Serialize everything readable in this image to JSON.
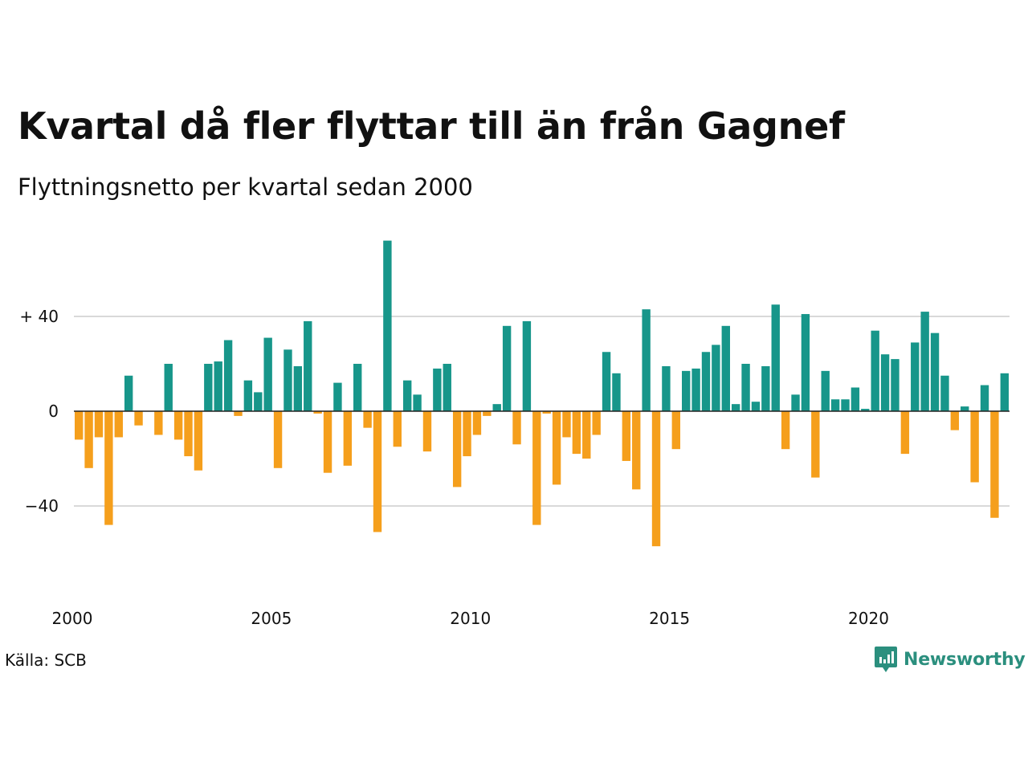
{
  "title": "Kvartal då fler flyttar till än från Gagnef",
  "subtitle": "Flyttningsnetto per kvartal sedan 2000",
  "source": "Källa: SCB",
  "brand": {
    "name": "Newsworthy",
    "icon": "bar-chart-badge-icon"
  },
  "colors": {
    "positive": "#17968a",
    "negative": "#f59f1c",
    "grid": "#d9d9d9",
    "zero": "#222222",
    "brand": "#2b8f7e"
  },
  "chart_data": {
    "type": "bar",
    "xlabel": "",
    "ylabel": "",
    "ylim": [
      -70,
      75
    ],
    "grid": true,
    "y_ticks": [
      40,
      0,
      -40
    ],
    "y_tick_labels": [
      "+ 40",
      "0",
      "−40"
    ],
    "x_ticks": [
      "2000",
      "2005",
      "2010",
      "2015",
      "2020"
    ],
    "first_quarter": "2000 Q1",
    "values": [
      -12,
      -24,
      -11,
      -48,
      -11,
      15,
      -6,
      0,
      -10,
      20,
      -12,
      -19,
      -25,
      20,
      21,
      30,
      -2,
      13,
      8,
      31,
      -24,
      26,
      19,
      38,
      -1,
      -26,
      12,
      -23,
      20,
      -7,
      -51,
      72,
      -15,
      13,
      7,
      -17,
      18,
      20,
      -32,
      -19,
      -10,
      -2,
      3,
      36,
      -14,
      38,
      -48,
      -1,
      -31,
      -11,
      -18,
      -20,
      -10,
      25,
      16,
      -21,
      -33,
      43,
      -57,
      19,
      -16,
      17,
      18,
      25,
      28,
      36,
      3,
      20,
      4,
      19,
      45,
      -16,
      7,
      41,
      -28,
      17,
      5,
      5,
      10,
      1,
      34,
      24,
      22,
      -18,
      29,
      42,
      33,
      15,
      -8,
      2,
      -30,
      11,
      -45,
      16
    ]
  }
}
